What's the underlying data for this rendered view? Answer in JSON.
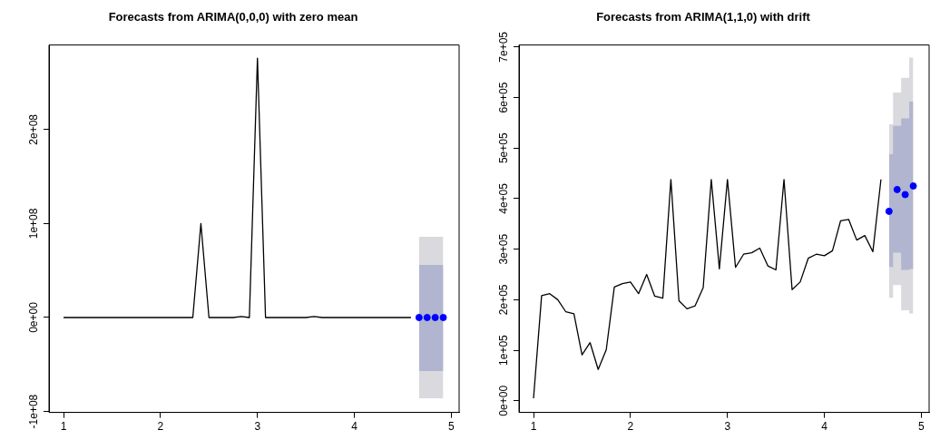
{
  "chart_data": [
    {
      "type": "line",
      "title": "Forecasts from ARIMA(0,0,0) with zero mean",
      "xlim": [
        0.85,
        5.08
      ],
      "xticks": [
        1,
        2,
        3,
        4,
        5
      ],
      "ylim": [
        -101000000,
        290000000
      ],
      "yticks": [
        {
          "value": -100000000,
          "label": "-1e+08"
        },
        {
          "value": 0,
          "label": "0e+00"
        },
        {
          "value": 100000000,
          "label": "1e+08"
        },
        {
          "value": 200000000,
          "label": "2e+08"
        }
      ],
      "grid": false,
      "legend": false,
      "series": [
        {
          "color": "#000000",
          "x": [
            1,
            1.0833,
            1.1667,
            1.25,
            1.3333,
            1.4167,
            1.5,
            1.5833,
            1.6667,
            1.75,
            1.8333,
            1.9167,
            2,
            2.0833,
            2.1667,
            2.25,
            2.3333,
            2.4167,
            2.5,
            2.5833,
            2.6667,
            2.75,
            2.8333,
            2.9167,
            3,
            3.0833,
            3.1667,
            3.25,
            3.3333,
            3.4167,
            3.5,
            3.5833,
            3.6667,
            3.75,
            3.8333,
            3.9167,
            4,
            4.0833,
            4.1667,
            4.25,
            4.3333,
            4.4167,
            4.5,
            4.5833
          ],
          "values": [
            0,
            0,
            0,
            0,
            0,
            0,
            0,
            0,
            0,
            0,
            0,
            0,
            0,
            0,
            0,
            0,
            0,
            100000000,
            0,
            0,
            0,
            0,
            1000000,
            0,
            276000000,
            0,
            0,
            0,
            0,
            0,
            0,
            1000000,
            0,
            0,
            0,
            0,
            0,
            0,
            0,
            0,
            0,
            0,
            0,
            0
          ]
        },
        {
          "type": "area",
          "color": "#d9d9de",
          "x": [
            4.6667,
            4.75,
            4.8333,
            4.9167
          ],
          "values": [
            null,
            null,
            null,
            null
          ],
          "lower": [
            -86000000,
            -86000000,
            -86000000,
            -86000000
          ],
          "upper": [
            86000000,
            86000000,
            86000000,
            86000000
          ]
        },
        {
          "type": "area",
          "color": "#b1b5cf",
          "x": [
            4.6667,
            4.75,
            4.8333,
            4.9167
          ],
          "values": [
            null,
            null,
            null,
            null
          ],
          "lower": [
            -57000000,
            -57000000,
            -57000000,
            -57000000
          ],
          "upper": [
            56000000,
            56000000,
            56000000,
            56000000
          ]
        },
        {
          "type": "scatter",
          "marker": "circle",
          "color": "#0000ff",
          "x": [
            4.6667,
            4.75,
            4.8333,
            4.9167
          ],
          "values": [
            0,
            0,
            0,
            0
          ]
        }
      ]
    },
    {
      "type": "line",
      "title": "Forecasts from ARIMA(1,1,0) with drift",
      "xlim": [
        0.85,
        5.08
      ],
      "xticks": [
        1,
        2,
        3,
        4,
        5
      ],
      "ylim": [
        -23000,
        704000
      ],
      "yticks": [
        {
          "value": 0,
          "label": "0e+00"
        },
        {
          "value": 100000,
          "label": "1e+05"
        },
        {
          "value": 200000,
          "label": "2e+05"
        },
        {
          "value": 300000,
          "label": "3e+05"
        },
        {
          "value": 400000,
          "label": "4e+05"
        },
        {
          "value": 500000,
          "label": "5e+05"
        },
        {
          "value": 600000,
          "label": "6e+05"
        },
        {
          "value": 700000,
          "label": "7e+05"
        }
      ],
      "grid": false,
      "legend": false,
      "series": [
        {
          "color": "#000000",
          "x": [
            1,
            1.0833,
            1.1667,
            1.25,
            1.3333,
            1.4167,
            1.5,
            1.5833,
            1.6667,
            1.75,
            1.8333,
            1.9167,
            2,
            2.0833,
            2.1667,
            2.25,
            2.3333,
            2.4167,
            2.5,
            2.5833,
            2.6667,
            2.75,
            2.8333,
            2.9167,
            3,
            3.0833,
            3.1667,
            3.25,
            3.3333,
            3.4167,
            3.5,
            3.5833,
            3.6667,
            3.75,
            3.8333,
            3.9167,
            4,
            4.0833,
            4.1667,
            4.25,
            4.3333,
            4.4167,
            4.5,
            4.5833
          ],
          "values": [
            5000,
            208000,
            212000,
            200000,
            176000,
            172000,
            91000,
            115000,
            62000,
            101000,
            225000,
            232000,
            235000,
            212000,
            250000,
            207000,
            203000,
            438000,
            198000,
            182000,
            188000,
            224000,
            438000,
            261000,
            438000,
            264000,
            290000,
            293000,
            302000,
            267000,
            259000,
            438000,
            220000,
            235000,
            282000,
            290000,
            287000,
            297000,
            356000,
            359000,
            318000,
            327000,
            295000,
            438000
          ]
        },
        {
          "type": "area",
          "color": "#d9d9de",
          "x": [
            4.6667,
            4.75,
            4.8333,
            4.9167
          ],
          "values": [
            null,
            null,
            null,
            null
          ],
          "lower": [
            204000,
            229000,
            179000,
            173000
          ],
          "upper": [
            547000,
            610000,
            639000,
            679000
          ]
        },
        {
          "type": "area",
          "color": "#b1b5cf",
          "x": [
            4.6667,
            4.75,
            4.8333,
            4.9167
          ],
          "values": [
            null,
            null,
            null,
            null
          ],
          "lower": [
            265000,
            293000,
            259000,
            261000
          ],
          "upper": [
            488000,
            544000,
            559000,
            592000
          ]
        },
        {
          "type": "scatter",
          "marker": "circle",
          "color": "#0000ff",
          "x": [
            4.6667,
            4.75,
            4.8333,
            4.9167
          ],
          "values": [
            375000,
            418000,
            408000,
            425000
          ]
        }
      ]
    }
  ]
}
